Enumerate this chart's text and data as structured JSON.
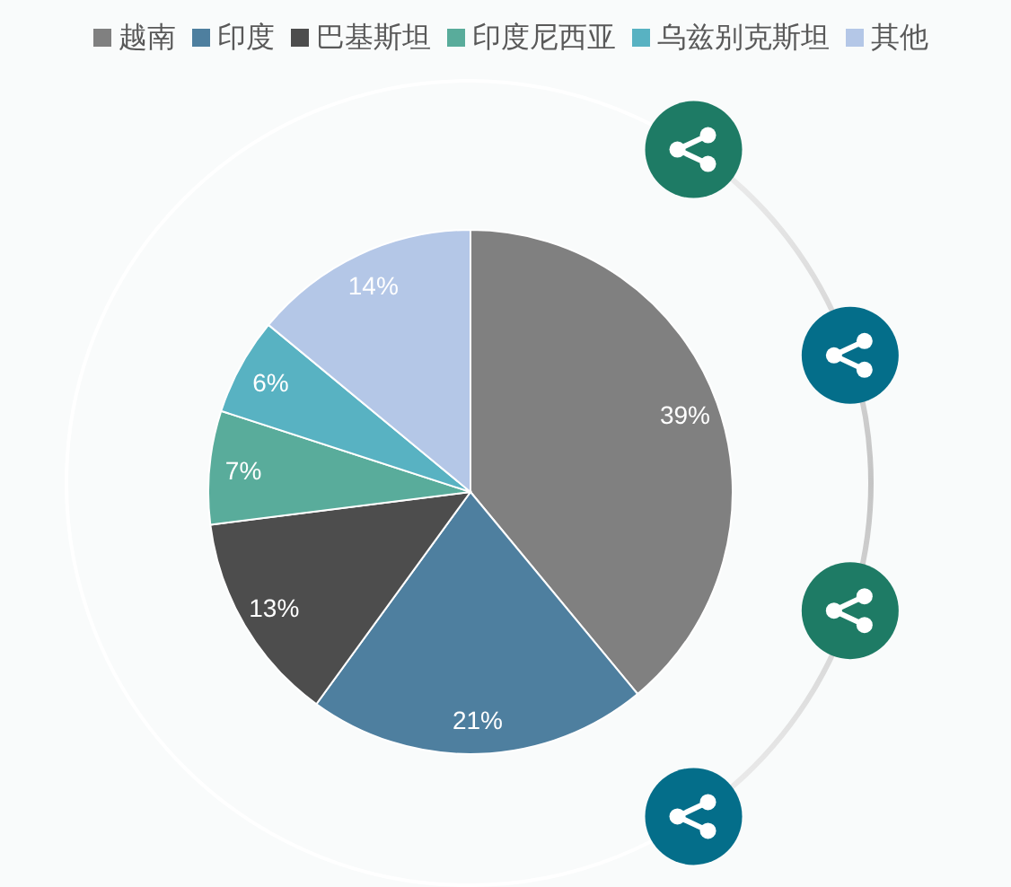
{
  "chart_data": {
    "type": "pie",
    "categories": [
      "越南",
      "印度",
      "巴基斯坦",
      "印度尼西亚",
      "乌兹别克斯坦",
      "其他"
    ],
    "values": [
      39,
      21,
      13,
      7,
      6,
      14
    ],
    "value_labels": [
      "39%",
      "21%",
      "13%",
      "7%",
      "6%",
      "14%"
    ],
    "colors": [
      "#808080",
      "#4e7f9f",
      "#4d4d4d",
      "#59ac9b",
      "#58b2c2",
      "#b4c7e7"
    ],
    "legend": "top"
  }
}
